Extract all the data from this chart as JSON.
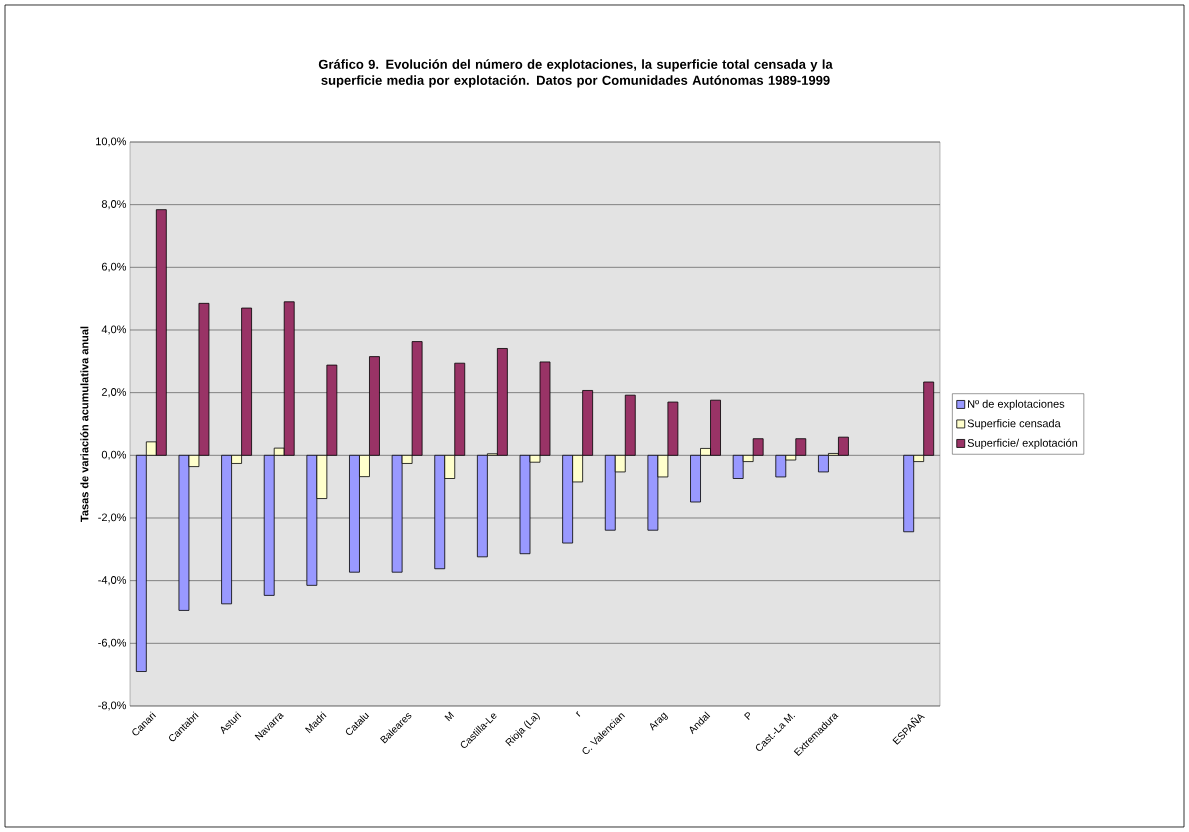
{
  "chart_data": {
    "type": "bar",
    "title": "Gráfico 9. Evolución del número de explotaciones, la superficie total censada y la superficie media por explotación. Datos por Comunidades Autónomas  1989-1999",
    "ylabel": "Tasas de variación acumulativa anual",
    "categories": [
      "Canari",
      "Cantabri",
      "Asturi",
      "Navarra",
      "Madri",
      "Catalu",
      "Baleares",
      "M",
      "Castilla-Le",
      "Rioja (La)",
      "r",
      "C. Valencian",
      "Arag",
      "Andal",
      "P",
      "Cast.-La M.",
      "Extremadura",
      null,
      "ESPAÑA"
    ],
    "series": [
      {
        "name": "Nº de explotaciones",
        "color": "#9999ff",
        "values": [
          -6.9,
          -4.95,
          -4.74,
          -4.47,
          -4.15,
          -3.73,
          -3.73,
          -3.62,
          -3.24,
          -3.14,
          -2.8,
          -2.39,
          -2.39,
          -1.49,
          -0.74,
          -0.69,
          -0.53,
          null,
          -2.44
        ]
      },
      {
        "name": "Superficie censada",
        "color": "#ffffcc",
        "values": [
          0.43,
          -0.36,
          -0.26,
          0.23,
          -1.38,
          -0.68,
          -0.26,
          -0.74,
          0.05,
          -0.22,
          -0.85,
          -0.53,
          -0.69,
          0.22,
          -0.2,
          -0.15,
          0.06,
          null,
          -0.2
        ]
      },
      {
        "name": "Superficie/ explotación",
        "color": "#993366",
        "values": [
          7.84,
          4.85,
          4.7,
          4.9,
          2.88,
          3.15,
          3.63,
          2.94,
          3.41,
          2.98,
          2.07,
          1.92,
          1.7,
          1.76,
          0.53,
          0.53,
          0.58,
          null,
          2.34
        ]
      }
    ],
    "ylim": [
      -8,
      10
    ],
    "yticks": [
      {
        "value": -8,
        "label": "-8,0%"
      },
      {
        "value": -6,
        "label": "-6,0%"
      },
      {
        "value": -4,
        "label": "-4,0%"
      },
      {
        "value": -2,
        "label": "-2,0%"
      },
      {
        "value": 0,
        "label": "0,0%"
      },
      {
        "value": 2,
        "label": "2,0%"
      },
      {
        "value": 4,
        "label": "4,0%"
      },
      {
        "value": 6,
        "label": "6,0%"
      },
      {
        "value": 8,
        "label": "8,0%"
      },
      {
        "value": 10,
        "label": "10,0%"
      }
    ],
    "grid": "y",
    "legend": "right"
  }
}
